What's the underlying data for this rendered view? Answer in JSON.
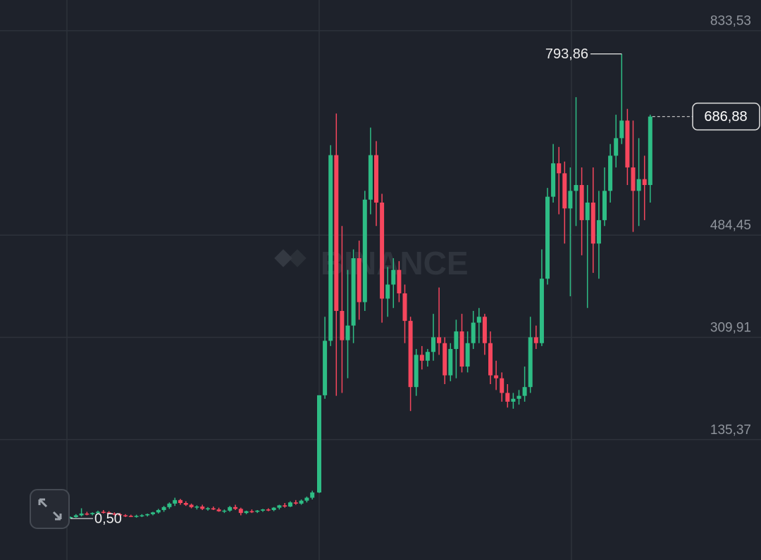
{
  "chart_data": {
    "type": "candlestick",
    "watermark": "BINANCE",
    "ylim": [
      -70.3,
      885.9
    ],
    "yticks": [
      {
        "value": 833.53,
        "label": "833,53"
      },
      {
        "value": 484.45,
        "label": "484,45"
      },
      {
        "value": 309.91,
        "label": "309,91"
      },
      {
        "value": 135.37,
        "label": "135,37"
      }
    ],
    "grid": true,
    "up_color": "#2ebd85",
    "down_color": "#f6465d",
    "annotations": {
      "high": {
        "value": 793.86,
        "label": "793,86"
      },
      "low": {
        "value": 0.5,
        "label": "0,50"
      },
      "last": {
        "value": 686.88,
        "label": "686,88"
      }
    },
    "open": [
      1,
      3,
      6,
      9,
      8,
      10,
      12,
      11,
      9,
      8,
      6,
      5,
      4,
      5,
      6,
      8,
      11,
      15,
      20,
      26,
      32,
      27,
      24,
      20,
      21,
      17,
      18,
      16,
      13,
      14,
      20,
      17,
      10,
      13,
      12,
      14,
      16,
      15,
      19,
      23,
      21,
      28,
      26,
      31,
      36,
      45,
      211,
      304,
      621,
      355,
      305,
      330,
      445,
      370,
      545,
      621,
      540,
      376,
      400,
      425,
      385,
      338,
      225,
      280,
      270,
      285,
      310,
      300,
      245,
      290,
      320,
      260,
      300,
      335,
      345,
      300,
      245,
      240,
      215,
      200,
      205,
      210,
      225,
      310,
      300,
      410,
      550,
      607,
      590,
      530,
      560,
      570,
      510,
      540,
      470,
      510,
      560,
      620,
      650,
      680,
      600,
      560,
      580,
      570
    ],
    "high": [
      4,
      8,
      18,
      12,
      11,
      14,
      15,
      13,
      11,
      10,
      8,
      7,
      7,
      8,
      9,
      12,
      17,
      22,
      28,
      36,
      34,
      30,
      26,
      23,
      24,
      20,
      21,
      19,
      16,
      22,
      24,
      19,
      14,
      16,
      15,
      17,
      18,
      20,
      24,
      27,
      30,
      32,
      33,
      38,
      48,
      211,
      345,
      638,
      692,
      500,
      425,
      460,
      475,
      560,
      668,
      645,
      555,
      430,
      445,
      440,
      400,
      345,
      290,
      295,
      290,
      350,
      395,
      310,
      300,
      340,
      350,
      320,
      355,
      360,
      350,
      320,
      270,
      250,
      230,
      215,
      220,
      260,
      345,
      330,
      460,
      565,
      640,
      635,
      610,
      600,
      720,
      600,
      570,
      600,
      560,
      600,
      640,
      690,
      793.86,
      700,
      680,
      650,
      620,
      690
    ],
    "low": [
      0.5,
      2,
      4,
      6,
      6,
      8,
      9,
      8,
      6,
      5,
      3,
      3,
      2,
      3,
      4,
      6,
      9,
      12,
      17,
      22,
      24,
      22,
      18,
      16,
      15,
      14,
      15,
      12,
      10,
      12,
      15,
      6,
      8,
      10,
      10,
      12,
      13,
      13,
      16,
      19,
      20,
      24,
      24,
      28,
      33,
      44,
      205,
      295,
      210,
      215,
      240,
      300,
      340,
      355,
      520,
      500,
      335,
      345,
      360,
      370,
      300,
      184,
      210,
      255,
      260,
      270,
      280,
      230,
      235,
      240,
      250,
      250,
      290,
      300,
      280,
      230,
      220,
      200,
      190,
      188,
      195,
      200,
      215,
      290,
      295,
      400,
      540,
      520,
      470,
      380,
      500,
      450,
      360,
      420,
      410,
      500,
      540,
      600,
      640,
      570,
      490,
      500,
      510,
      540
    ],
    "close": [
      3,
      6,
      9,
      8,
      10,
      12,
      11,
      9,
      8,
      6,
      5,
      4,
      5,
      6,
      8,
      11,
      15,
      20,
      26,
      32,
      27,
      24,
      20,
      21,
      17,
      18,
      16,
      13,
      14,
      20,
      17,
      10,
      13,
      12,
      14,
      16,
      15,
      19,
      23,
      21,
      28,
      26,
      31,
      36,
      45,
      211,
      304,
      621,
      355,
      305,
      330,
      445,
      370,
      545,
      621,
      540,
      376,
      400,
      425,
      385,
      338,
      225,
      280,
      270,
      285,
      310,
      300,
      245,
      290,
      320,
      260,
      300,
      335,
      345,
      300,
      245,
      240,
      215,
      200,
      205,
      210,
      225,
      310,
      300,
      410,
      550,
      607,
      590,
      530,
      560,
      570,
      510,
      540,
      470,
      510,
      560,
      620,
      650,
      680,
      600,
      560,
      580,
      570,
      686.88
    ]
  }
}
